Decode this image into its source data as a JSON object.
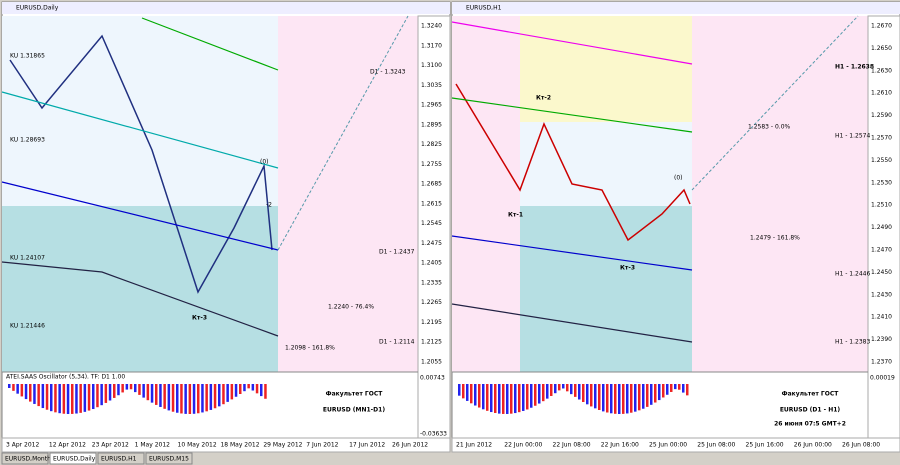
{
  "windows": [
    {
      "title": "EURUSD,Daily",
      "price_labels": [
        "1.3240",
        "1.3170",
        "1.3100",
        "1.3035",
        "1.2965",
        "1.2895",
        "1.2825",
        "1.2755",
        "1.2685",
        "1.2615",
        "1.2545",
        "1.2475",
        "1.2405",
        "1.2335",
        "1.2265",
        "1.2195",
        "1.2125",
        "1.2055"
      ],
      "date_labels": [
        "3 Apr 2012",
        "12 Apr 2012",
        "23 Apr 2012",
        "1 May 2012",
        "10 May 2012",
        "18 May 2012",
        "29 May 2012",
        "7 Jun 2012",
        "17 Jun 2012",
        "26 Jun 2012"
      ],
      "annotations": [
        "(0)",
        "-2",
        "Кт-3",
        "D1 - 1.3243",
        "D1 - 1.2437",
        "D1 - 1.2114",
        "1.2240 - 76.4%",
        "1.2098 - 161.8%",
        "KU 1.31865",
        "KU 1.28693",
        "KU 1.24107",
        "KU 1.21446"
      ],
      "oscillator_label": "ATEI.SAAS Oscillator (5,34). TF: D1 1.00",
      "osc_labels": [
        "0.00743",
        "-0.03633"
      ],
      "caption": [
        "Факультет ГОСТ",
        "EURUSD (MN1-D1)"
      ]
    },
    {
      "title": "EURUSD,H1",
      "price_labels": [
        "1.2670",
        "1.2650",
        "1.2630",
        "1.2610",
        "1.2590",
        "1.2570",
        "1.2550",
        "1.2530",
        "1.2510",
        "1.2490",
        "1.2470",
        "1.2450",
        "1.2430",
        "1.2410",
        "1.2390",
        "1.2370"
      ],
      "date_labels": [
        "21 Jun 2012",
        "22 Jun 00:00",
        "22 Jun 08:00",
        "22 Jun 16:00",
        "25 Jun 00:00",
        "25 Jun 08:00",
        "25 Jun 16:00",
        "26 Jun 00:00",
        "26 Jun 08:00"
      ],
      "annotations": [
        "Кт-2",
        "Кт-1",
        "Кт-3",
        "(0)",
        "H1 - 1.2638",
        "H1 - 1.2574",
        "H1 - 1.2446",
        "H1 - 1.2383",
        "1.2583 - 0.0%",
        "1.2479 - 161.8%"
      ],
      "oscillator_label": "",
      "osc_labels": [
        "0.00019"
      ],
      "caption": [
        "Факультет ГОСТ",
        "EURUSD (D1 - H1)",
        "26 июня 07:5 GMT+2"
      ]
    }
  ],
  "tabs": [
    "EURUSD,Monthly",
    "EURUSD,Daily",
    "EURUSD,H1",
    "EURUSD,M15"
  ]
}
